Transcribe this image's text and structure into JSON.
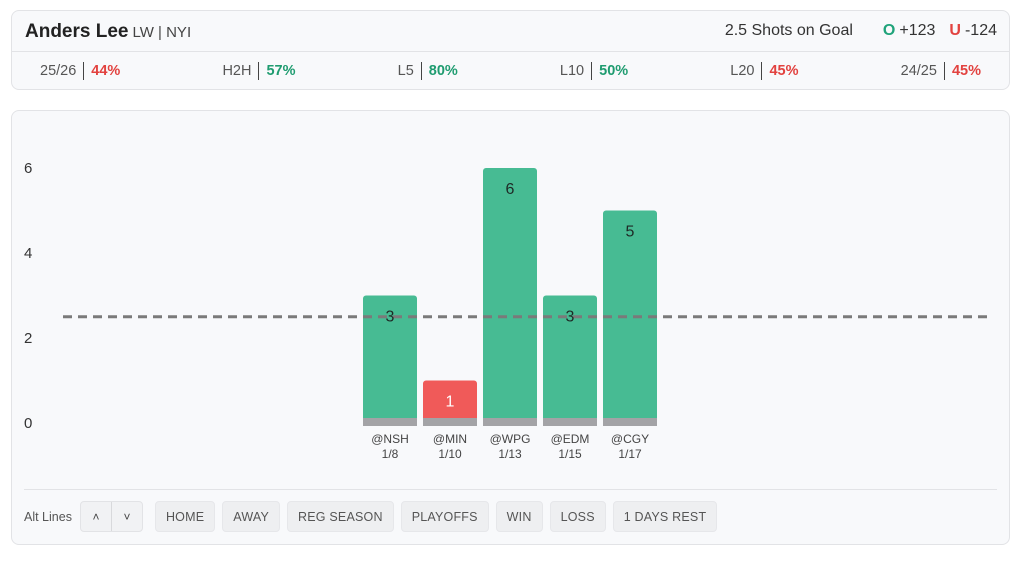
{
  "header": {
    "player_name": "Anders Lee",
    "player_meta": "LW | NYI",
    "prop_label": "2.5 Shots on Goal",
    "over": {
      "letter": "O",
      "odds": "+123"
    },
    "under": {
      "letter": "U",
      "odds": "-124"
    }
  },
  "stats": [
    {
      "label": "25/26",
      "value": "44%",
      "status": "red"
    },
    {
      "label": "H2H",
      "value": "57%",
      "status": "green"
    },
    {
      "label": "L5",
      "value": "80%",
      "status": "green"
    },
    {
      "label": "L10",
      "value": "50%",
      "status": "green"
    },
    {
      "label": "L20",
      "value": "45%",
      "status": "red"
    },
    {
      "label": "24/25",
      "value": "45%",
      "status": "red"
    }
  ],
  "colors": {
    "hit": "#47bb93",
    "miss": "#f05a59",
    "base": "#a3a3a6",
    "line": "#7a7a7a"
  },
  "chart_data": {
    "type": "bar",
    "categories": [
      "@NSH",
      "@MIN",
      "@WPG",
      "@EDM",
      "@CGY"
    ],
    "dates": [
      "1/8",
      "1/10",
      "1/13",
      "1/15",
      "1/17"
    ],
    "values": [
      3,
      1,
      6,
      3,
      5
    ],
    "threshold": 2.5,
    "yticks": [
      0,
      2,
      4,
      6
    ],
    "ylim": [
      0,
      6
    ],
    "title": "",
    "xlabel": "",
    "ylabel": ""
  },
  "footer": {
    "alt_lines_label": "Alt Lines",
    "up_glyph": "˄",
    "down_glyph": "˅",
    "filters": [
      "HOME",
      "AWAY",
      "REG SEASON",
      "PLAYOFFS",
      "WIN",
      "LOSS",
      "1 DAYS REST"
    ]
  }
}
